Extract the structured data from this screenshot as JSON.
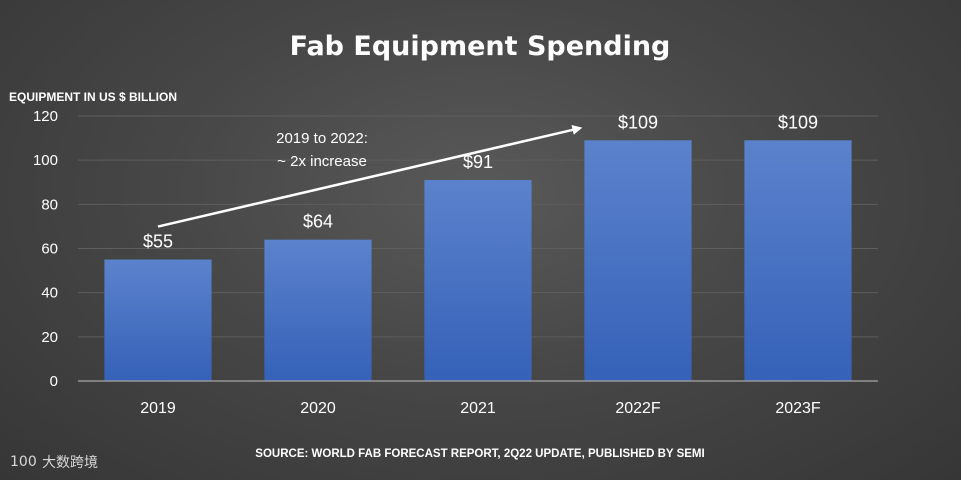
{
  "chart_data": {
    "type": "bar",
    "title": "Fab Equipment Spending",
    "ylabel": "EQUIPMENT IN US $ BILLION",
    "xlabel": "",
    "categories": [
      "2019",
      "2020",
      "2021",
      "2022F",
      "2023F"
    ],
    "values": [
      55,
      64,
      91,
      109,
      109
    ],
    "data_labels": [
      "$55",
      "$64",
      "$91",
      "$109",
      "$109"
    ],
    "ylim": [
      0,
      120
    ],
    "yticks": [
      0,
      20,
      40,
      60,
      80,
      100,
      120
    ],
    "grid": true,
    "legend": "none",
    "annotation": {
      "lines": [
        "2019 to 2022:",
        "~ 2x increase"
      ],
      "from_category": "2019",
      "to_category": "2022F"
    },
    "source": "SOURCE: WORLD FAB FORECAST REPORT, 2Q22 UPDATE, PUBLISHED BY SEMI",
    "colors": {
      "bar_top": "#5b82cc",
      "bar_bottom": "#3561b8",
      "grid": "#5e5e5e",
      "axis": "#a6a6a6"
    }
  },
  "watermark": {
    "text": "大数跨境",
    "logo_text": "100"
  }
}
